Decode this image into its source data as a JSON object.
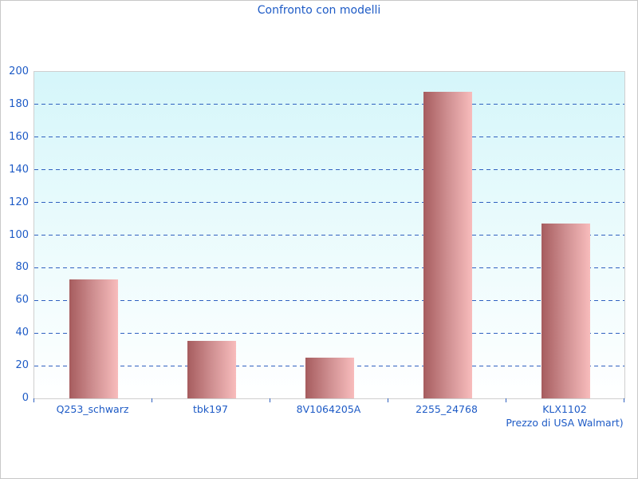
{
  "page": {
    "background": "#ffffff",
    "border_color": "#c8c8c8"
  },
  "chart_data": {
    "type": "bar",
    "title": "Confronto con modelli",
    "categories": [
      "Q253_schwarz",
      "tbk197",
      "8V1064205A",
      "2255_24768",
      "KLX1102"
    ],
    "category_sublabels": [
      "",
      "",
      "",
      "",
      "Prezzo di USA Walmart)"
    ],
    "values": [
      73,
      35,
      25,
      188,
      107
    ],
    "series": [
      {
        "name": "Prezzo",
        "values": [
          73,
          35,
          25,
          188,
          107
        ]
      }
    ],
    "xlabel": "",
    "ylabel": "",
    "ylim": [
      0,
      200
    ],
    "ytick_step": 20,
    "yticks": [
      0,
      20,
      40,
      60,
      80,
      100,
      120,
      140,
      160,
      180,
      200
    ],
    "grid": "horizontal-dashed",
    "legend": "none",
    "colors": {
      "title_text": "#1e5bc6",
      "axis_text": "#1e5bc6",
      "gridline": "#3061c0",
      "plot_border": "#cfcfcf",
      "plot_bg_top": "#d5f6fa",
      "plot_bg_bottom": "#ffffff",
      "bar_gradient_left": "#a65c5e",
      "bar_gradient_right": "#f8bcbc"
    }
  }
}
